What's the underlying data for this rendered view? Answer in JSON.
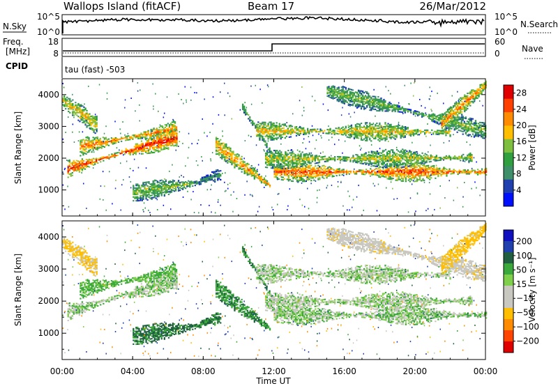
{
  "header": {
    "station": "Wallops Island (fitACF)",
    "beam": "Beam 17",
    "date": "26/Mar/2012"
  },
  "top_panels": {
    "nsky_label": "N.Sky",
    "nsearch_label": "N.Search",
    "noise_ticks": [
      "10^5",
      "10^0"
    ],
    "noise_ticks_right": [
      "10^5",
      "10^0"
    ],
    "freq_label_line1": "Freq.",
    "freq_label_line2": "[MHz]",
    "freq_ticks": [
      "18",
      "8"
    ],
    "nave_label": "Nave",
    "nave_ticks": [
      "60",
      "0"
    ],
    "cpid_label": "CPID",
    "cpid_value": "tau (fast) -503"
  },
  "colors": {
    "power": [
      "#0010ff",
      "#2040b0",
      "#3f8f6a",
      "#2f9f3f",
      "#7fbf3f",
      "#ffbf00",
      "#ff8c00",
      "#ff4000",
      "#e00000"
    ],
    "velocity": [
      "#e00000",
      "#ff4500",
      "#ff8c00",
      "#ffbf00",
      "#c8c8c0",
      "#c8c8c0",
      "#7ed04b",
      "#3aa83a",
      "#206040",
      "#2040b0",
      "#1010c0"
    ]
  },
  "chart_data": [
    {
      "type": "heatmap",
      "name": "power",
      "xlabel": "",
      "ylabel": "Slant Range [km]",
      "x_ticks": [
        "00:00",
        "04:00",
        "08:00",
        "12:00",
        "16:00",
        "20:00",
        "00:00"
      ],
      "y_ticks": [
        1000,
        2000,
        3000,
        4000
      ],
      "xlim": [
        0,
        24
      ],
      "ylim": [
        180,
        4500
      ],
      "colorbar_label": "Power [dB]",
      "colorbar_ticks": [
        "4",
        "8",
        "12",
        "16",
        "20",
        "24",
        "28"
      ],
      "colorbar_range": [
        0,
        30
      ]
    },
    {
      "type": "heatmap",
      "name": "velocity",
      "xlabel": "Time UT",
      "ylabel": "Slant Range [km]",
      "x_ticks": [
        "00:00",
        "04:00",
        "08:00",
        "12:00",
        "16:00",
        "20:00",
        "00:00"
      ],
      "y_ticks": [
        1000,
        2000,
        3000,
        4000
      ],
      "xlim": [
        0,
        24
      ],
      "ylim": [
        180,
        4500
      ],
      "colorbar_label": "Velocity [m s⁻¹]",
      "colorbar_ticks": [
        "200",
        "100",
        "50",
        "15",
        "−15",
        "−50",
        "−100",
        "−200"
      ]
    }
  ],
  "series_bands": [
    {
      "t0": 0.0,
      "t1": 2.0,
      "r0": 3800,
      "r1": 3000,
      "pw": 19,
      "vel": -60
    },
    {
      "t0": 1.0,
      "t1": 6.5,
      "r0": 2350,
      "r1": 2900,
      "pw": 23,
      "vel": 25
    },
    {
      "t0": 0.3,
      "t1": 6.5,
      "r0": 1650,
      "r1": 2650,
      "pw": 27,
      "vel": 0
    },
    {
      "t0": 4.0,
      "t1": 7.5,
      "r0": 900,
      "r1": 1200,
      "pw": 15,
      "vel": 60
    },
    {
      "t0": 7.5,
      "t1": 9.0,
      "r0": 1200,
      "r1": 1500,
      "pw": 9,
      "vel": 55
    },
    {
      "t0": 8.7,
      "t1": 11.8,
      "r0": 2400,
      "r1": 1100,
      "pw": 22,
      "vel": 40
    },
    {
      "t0": 10.2,
      "t1": 12.0,
      "r0": 3600,
      "r1": 2000,
      "pw": 14,
      "vel": 45
    },
    {
      "t0": 12.0,
      "t1": 24.0,
      "r0": 1550,
      "r1": 1550,
      "pw": 25,
      "vel": 5
    },
    {
      "t0": 11.5,
      "t1": 23.2,
      "r0": 1950,
      "r1": 2000,
      "pw": 17,
      "vel": 0
    },
    {
      "t0": 11.0,
      "t1": 22.0,
      "r0": 2850,
      "r1": 2800,
      "pw": 19,
      "vel": 0
    },
    {
      "t0": 15.0,
      "t1": 24.0,
      "r0": 4100,
      "r1": 2850,
      "pw": 14,
      "vel": -30
    },
    {
      "t0": 21.5,
      "t1": 24.0,
      "r0": 3100,
      "r1": 4300,
      "pw": 22,
      "vel": -70
    }
  ]
}
